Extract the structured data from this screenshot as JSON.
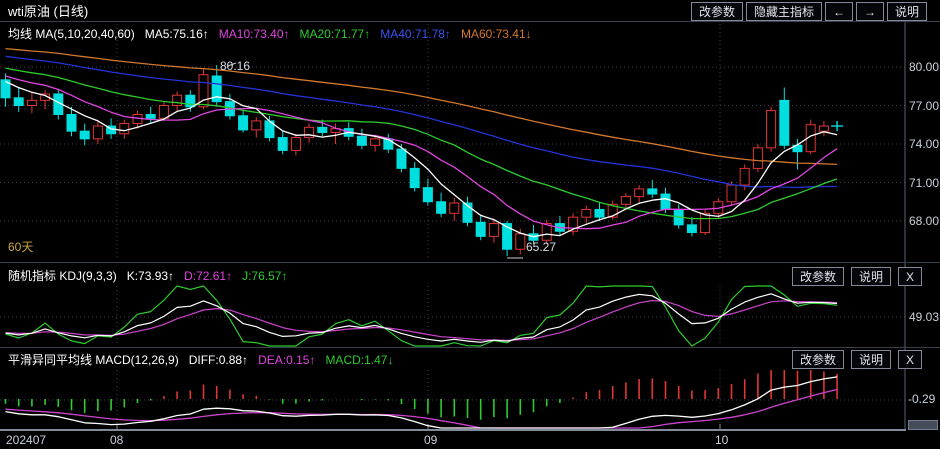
{
  "colors": {
    "up_candle": "#e23535",
    "down_candle": "#00dfdf",
    "ma5": "#ffffff",
    "ma10": "#e145e1",
    "ma20": "#2ecc2e",
    "ma40": "#2433d6",
    "ma60": "#d2782d",
    "kdj_k": "#ffffff",
    "kdj_d": "#cc44cc",
    "kdj_j": "#2ecc2e",
    "macd_diff": "#ffffff",
    "macd_dea": "#cc44cc",
    "hist_up": "#e23535",
    "hist_down": "#2ecc2e",
    "grid": "#3a4150",
    "axis_line": "#5a6273",
    "annotation_yellow": "#c9a63d"
  },
  "title_bar": {
    "title": "wti原油 (日线)",
    "buttons": [
      {
        "label": "改参数"
      },
      {
        "label": "隐藏主指标"
      },
      {
        "label": "←"
      },
      {
        "label": "→"
      },
      {
        "label": "说明"
      }
    ]
  },
  "main_panel": {
    "indicator_title": "均线 MA(5,10,20,40,60)",
    "ma_readings": [
      {
        "name": "MA5",
        "label": "MA5:75.16↑"
      },
      {
        "name": "MA10",
        "label": "MA10:73.40↑"
      },
      {
        "name": "MA20",
        "label": "MA20:71.77↑"
      },
      {
        "name": "MA40",
        "label": "MA40:71.78↑"
      },
      {
        "name": "MA60",
        "label": "MA60:73.41↓"
      }
    ],
    "period_label": "60天",
    "high_annotation": "80.16",
    "low_annotation": "65.27",
    "y_ticks": [
      "80.00",
      "77.00",
      "74.00",
      "71.00",
      "68.00"
    ]
  },
  "kdj_panel": {
    "title": "随机指标 KDJ(9,3,3)",
    "readings": [
      {
        "name": "K",
        "label": "K:73.93↑"
      },
      {
        "name": "D",
        "label": "D:72.61↑"
      },
      {
        "name": "J",
        "label": "J:76.57↑"
      }
    ],
    "buttons": [
      {
        "label": "改参数"
      },
      {
        "label": "说明"
      },
      {
        "label": "X"
      }
    ],
    "y_tick": "49.03"
  },
  "macd_panel": {
    "title": "平滑异同平均线 MACD(12,26,9)",
    "readings": [
      {
        "name": "DIFF",
        "label": "DIFF:0.88↑"
      },
      {
        "name": "DEA",
        "label": "DEA:0.15↑"
      },
      {
        "name": "MACD",
        "label": "MACD:1.47↓"
      }
    ],
    "buttons": [
      {
        "label": "改参数"
      },
      {
        "label": "说明"
      },
      {
        "label": "X"
      }
    ],
    "y_tick": "-0.29"
  },
  "x_axis": {
    "labels": [
      "202407",
      "08",
      "09",
      "10"
    ]
  },
  "chart_data": {
    "type": "candlestick",
    "symbol": "wti原油",
    "period": "日线",
    "title": "wti原油 (日线)",
    "y_axis_ticks": [
      80,
      77,
      74,
      71,
      68
    ],
    "x_labels": [
      "202407",
      "08",
      "09",
      "10"
    ],
    "high_marker": 80.16,
    "low_marker": 65.27,
    "last_marker": "cross",
    "candles": [
      [
        79.0,
        79.5,
        76.9,
        77.6
      ],
      [
        77.6,
        78.4,
        76.5,
        77.0
      ],
      [
        77.0,
        78.0,
        76.4,
        77.4
      ],
      [
        77.4,
        78.2,
        76.7,
        77.9
      ],
      [
        77.9,
        78.3,
        75.9,
        76.3
      ],
      [
        76.3,
        76.9,
        74.6,
        75.0
      ],
      [
        75.0,
        75.6,
        73.9,
        74.4
      ],
      [
        74.4,
        75.8,
        74.0,
        75.4
      ],
      [
        75.4,
        76.0,
        74.4,
        74.8
      ],
      [
        74.8,
        75.9,
        74.4,
        75.6
      ],
      [
        75.6,
        76.6,
        75.2,
        76.3
      ],
      [
        76.3,
        76.9,
        75.6,
        76.0
      ],
      [
        76.0,
        77.3,
        75.8,
        77.0
      ],
      [
        77.0,
        78.1,
        76.6,
        77.8
      ],
      [
        77.8,
        78.2,
        76.5,
        76.9
      ],
      [
        76.9,
        79.9,
        76.7,
        79.4
      ],
      [
        79.3,
        80.16,
        76.9,
        77.3
      ],
      [
        77.3,
        77.9,
        75.9,
        76.2
      ],
      [
        76.2,
        76.7,
        74.9,
        75.1
      ],
      [
        75.1,
        76.1,
        74.5,
        75.8
      ],
      [
        75.8,
        76.2,
        74.2,
        74.5
      ],
      [
        74.5,
        75.0,
        73.2,
        73.5
      ],
      [
        73.5,
        74.8,
        73.1,
        74.5
      ],
      [
        74.5,
        75.6,
        74.1,
        75.3
      ],
      [
        75.3,
        75.9,
        74.6,
        74.9
      ],
      [
        74.9,
        75.6,
        74.0,
        75.2
      ],
      [
        75.2,
        75.7,
        74.3,
        74.6
      ],
      [
        74.6,
        75.2,
        73.6,
        73.9
      ],
      [
        73.9,
        74.7,
        73.4,
        74.4
      ],
      [
        74.4,
        74.8,
        73.3,
        73.6
      ],
      [
        73.6,
        74.0,
        71.8,
        72.1
      ],
      [
        72.1,
        72.6,
        70.3,
        70.6
      ],
      [
        70.6,
        71.3,
        69.2,
        69.5
      ],
      [
        69.5,
        70.2,
        68.3,
        68.6
      ],
      [
        68.6,
        69.8,
        68.0,
        69.4
      ],
      [
        69.4,
        69.9,
        67.6,
        67.9
      ],
      [
        67.9,
        68.5,
        66.5,
        66.8
      ],
      [
        66.8,
        68.2,
        66.3,
        67.8
      ],
      [
        67.8,
        68.0,
        65.27,
        65.8
      ],
      [
        65.8,
        67.4,
        65.4,
        67.0
      ],
      [
        67.0,
        67.7,
        66.2,
        66.5
      ],
      [
        66.5,
        68.1,
        66.2,
        67.8
      ],
      [
        67.8,
        68.4,
        66.9,
        67.2
      ],
      [
        67.2,
        68.6,
        66.9,
        68.3
      ],
      [
        68.3,
        69.2,
        67.8,
        68.9
      ],
      [
        68.9,
        69.4,
        68.0,
        68.3
      ],
      [
        68.3,
        69.6,
        68.1,
        69.3
      ],
      [
        69.3,
        70.2,
        68.9,
        69.9
      ],
      [
        69.9,
        70.8,
        69.4,
        70.5
      ],
      [
        70.5,
        71.2,
        69.8,
        70.1
      ],
      [
        70.1,
        70.6,
        68.6,
        68.9
      ],
      [
        68.9,
        69.3,
        67.4,
        67.7
      ],
      [
        67.7,
        68.3,
        66.8,
        67.1
      ],
      [
        67.1,
        68.9,
        66.9,
        68.6
      ],
      [
        68.6,
        69.8,
        68.2,
        69.5
      ],
      [
        69.5,
        71.1,
        69.2,
        70.8
      ],
      [
        70.8,
        72.4,
        70.4,
        72.1
      ],
      [
        72.1,
        74.0,
        71.8,
        73.7
      ],
      [
        73.7,
        76.9,
        73.4,
        76.6
      ],
      [
        77.4,
        78.4,
        73.6,
        73.9
      ],
      [
        73.9,
        74.4,
        72.0,
        73.4
      ],
      [
        73.4,
        75.9,
        73.2,
        75.5
      ],
      [
        75.0,
        75.8,
        74.6,
        75.4
      ],
      [
        75.4,
        75.7,
        75.0,
        75.4
      ]
    ],
    "indicators": {
      "ma": {
        "params": "MA(5,10,20,40,60)",
        "MA5": 75.16,
        "MA10": 73.4,
        "MA20": 71.77,
        "MA40": 71.78,
        "MA60": 73.41
      },
      "kdj": {
        "params": "KDJ(9,3,3)",
        "K": 73.93,
        "D": 72.61,
        "J": 76.57,
        "grid_value": 49.03
      },
      "macd": {
        "params": "MACD(12,26,9)",
        "DIFF": 0.88,
        "DEA": 0.15,
        "MACD": 1.47,
        "grid_value": -0.29
      }
    }
  }
}
